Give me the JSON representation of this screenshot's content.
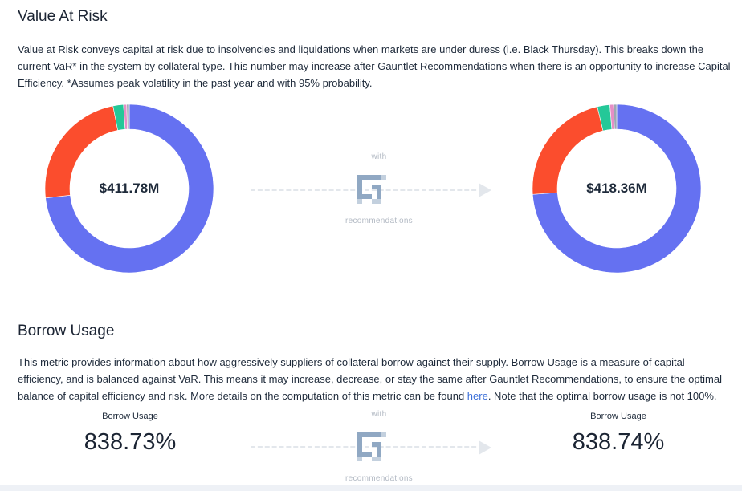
{
  "var_section": {
    "title": "Value At Risk",
    "description": "Value at Risk conveys capital at risk due to insolvencies and liquidations when markets are under duress (i.e. Black Thursday). This breaks down the current VaR* in the system by collateral type. This number may increase after Gauntlet Recommendations when there is an opportunity to increase Capital Efficiency. *Assumes peak volatility in the past year and with 95% probability.",
    "current_value": "$411.78M",
    "recommended_value": "$418.36M",
    "connector": {
      "with_label": "with",
      "recommendations_label": "recommendations"
    },
    "colors": {
      "blue": "#6571f1",
      "red": "#fb4d2d",
      "teal": "#24c898",
      "pink": "#e58fc6",
      "grey": "#9ea7b5"
    }
  },
  "chart_data": [
    {
      "type": "pie",
      "categories": [
        "blue",
        "red",
        "teal",
        "pink",
        "grey"
      ],
      "values": [
        73.2,
        23.7,
        2.0,
        0.6,
        0.5
      ],
      "center_label": "$411.78M"
    },
    {
      "type": "pie",
      "categories": [
        "blue",
        "red",
        "teal",
        "pink",
        "grey"
      ],
      "values": [
        73.9,
        22.4,
        2.4,
        0.7,
        0.6
      ],
      "center_label": "$418.36M"
    }
  ],
  "borrow_section": {
    "title": "Borrow Usage",
    "description_before_link": "This metric provides information about how aggressively suppliers of collateral borrow against their supply. Borrow Usage is a measure of capital efficiency, and is balanced against VaR. This means it may increase, decrease, or stay the same after Gauntlet Recommendations, to ensure the optimal balance of capital efficiency and risk. More details on the computation of this metric can be found ",
    "link_text": "here",
    "description_after_link": ". Note that the optimal borrow usage is not 100%.",
    "current_label": "Borrow Usage",
    "current_value": "838.73%",
    "recommended_label": "Borrow Usage",
    "recommended_value": "838.74%",
    "connector": {
      "with_label": "with",
      "recommendations_label": "recommendations"
    }
  },
  "gauntlet_logo": {
    "icon": "gauntlet-g-icon",
    "color": "#90a8c3"
  }
}
